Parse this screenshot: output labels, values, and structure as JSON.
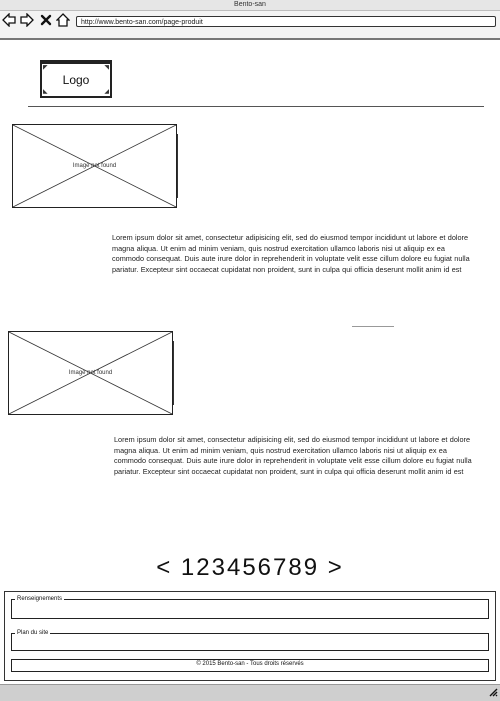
{
  "window": {
    "title": "Bento-san"
  },
  "browser": {
    "url": "http://www.bento-san.com/page-produit",
    "icons": [
      "back-arrow-icon",
      "forward-arrow-icon",
      "close-icon",
      "home-icon"
    ]
  },
  "header": {
    "logo_text": "Logo"
  },
  "sections": [
    {
      "image_label": "Image not found",
      "text": "Lorem ipsum dolor sit amet, consectetur adipisicing elit, sed do eiusmod tempor incididunt ut labore et dolore magna aliqua. Ut enim ad minim veniam, quis nostrud exercitation ullamco laboris nisi ut aliquip ex ea commodo consequat. Duis aute irure dolor in reprehenderit in voluptate velit esse cillum dolore eu fugiat nulla pariatur. Excepteur sint occaecat cupidatat non proident, sunt in culpa qui officia deserunt mollit anim id est"
    },
    {
      "image_label": "Image not found",
      "text": "Lorem ipsum dolor sit amet, consectetur adipisicing elit, sed do eiusmod tempor incididunt ut labore et dolore magna aliqua. Ut enim ad minim veniam, quis nostrud exercitation ullamco laboris nisi ut aliquip ex ea commodo consequat. Duis aute irure dolor in reprehenderit in voluptate velit esse cillum dolore eu fugiat nulla pariatur. Excepteur sint occaecat cupidatat non proident, sunt in culpa qui officia deserunt mollit anim id est"
    }
  ],
  "pagination": {
    "prev": "<",
    "pages": [
      "1",
      "2",
      "3",
      "4",
      "5",
      "6",
      "7",
      "8",
      "9"
    ],
    "next": ">"
  },
  "footer": {
    "renseignements": "Renseignements",
    "plan": "Plan du site",
    "copyright": "© 2015 Bento-san - Tous droits réservés"
  }
}
